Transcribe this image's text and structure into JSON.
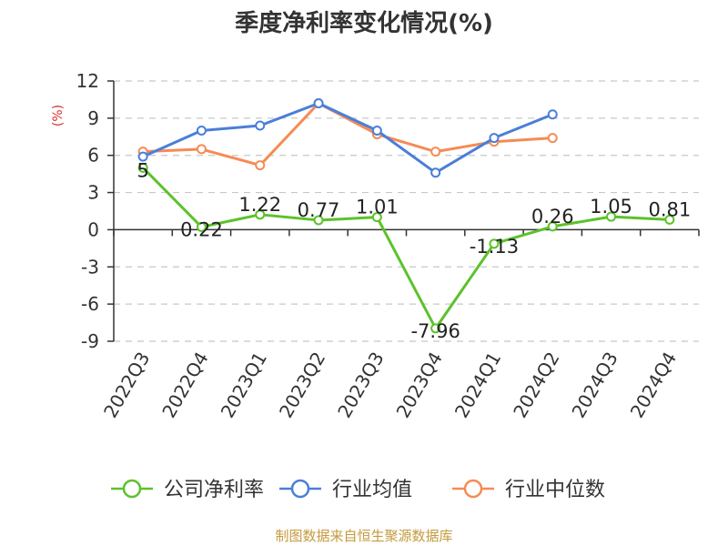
{
  "chart_data": {
    "type": "line",
    "title": "季度净利率变化情况(%)",
    "ylabel": "(%)",
    "ylim": [
      -9,
      12
    ],
    "yticks": [
      12,
      9,
      6,
      3,
      0,
      -3,
      -6,
      -9
    ],
    "grid": true,
    "legend_position": "bottom",
    "categories": [
      "2022Q3",
      "2022Q4",
      "2023Q1",
      "2023Q2",
      "2023Q3",
      "2023Q4",
      "2024Q1",
      "2024Q2",
      "2024Q3",
      "2024Q4"
    ],
    "series": [
      {
        "name": "公司净利率",
        "color": "#5cc22a",
        "values": [
          5,
          0.22,
          1.22,
          0.77,
          1.01,
          -7.96,
          -1.13,
          0.26,
          1.05,
          0.81
        ],
        "labels": [
          "5",
          "0.22",
          "1.22",
          "0.77",
          "1.01",
          "-7.96",
          "-1.13",
          "0.26",
          "1.05",
          "0.81"
        ]
      },
      {
        "name": "行业均值",
        "color": "#4a7fd8",
        "values": [
          5.9,
          8.0,
          8.4,
          10.2,
          8.0,
          4.6,
          7.4,
          9.3,
          null,
          null
        ]
      },
      {
        "name": "行业中位数",
        "color": "#f58b55",
        "values": [
          6.3,
          6.5,
          5.2,
          10.2,
          7.7,
          6.3,
          7.1,
          7.4,
          null,
          null
        ]
      }
    ],
    "ylabel_color": "#d9302c",
    "source": "制图数据来自恒生聚源数据库",
    "source_color": "#c49a3c"
  }
}
